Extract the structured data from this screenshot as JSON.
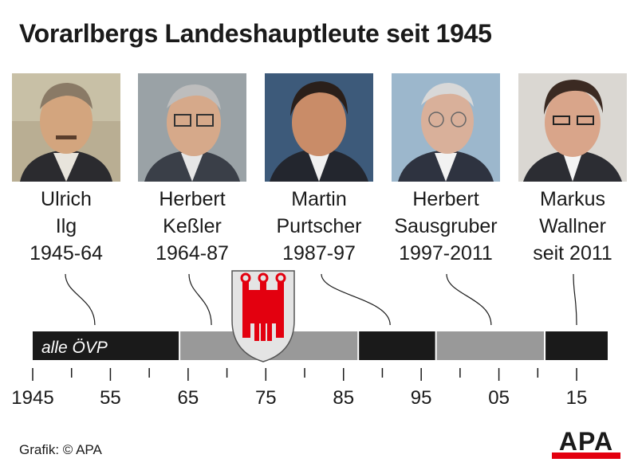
{
  "title": "Vorarlbergs Landeshauptleute seit 1945",
  "governors": [
    {
      "line1": "Ulrich",
      "line2": "Ilg",
      "line3": "1945-64",
      "start": 1945,
      "end": 1964
    },
    {
      "line1": "Herbert",
      "line2": "Keßler",
      "line3": "1964-87",
      "start": 1964,
      "end": 1987
    },
    {
      "line1": "Martin",
      "line2": "Purtscher",
      "line3": "1987-97",
      "start": 1987,
      "end": 1997
    },
    {
      "line1": "Herbert",
      "line2": "Sausgruber",
      "line3": "1997-2011",
      "start": 1997,
      "end": 2011
    },
    {
      "line1": "Markus",
      "line2": "Wallner",
      "line3": "seit 2011",
      "start": 2011,
      "end": 2019
    }
  ],
  "timeline_label": "alle ÖVP",
  "credit": "Grafik: © APA",
  "logo_text": "APA",
  "chart_data": {
    "type": "timeline",
    "x_range": [
      1945,
      2019
    ],
    "tick_labels": [
      "1945",
      "55",
      "65",
      "75",
      "85",
      "95",
      "05",
      "15"
    ],
    "tick_years": [
      1945,
      1955,
      1965,
      1975,
      1985,
      1995,
      2005,
      2015
    ],
    "minor_tick_years": [
      1950,
      1960,
      1970,
      1980,
      1990,
      2000,
      2010
    ],
    "segments": [
      {
        "start": 1945,
        "end": 1964,
        "color": "#1a1a1a"
      },
      {
        "start": 1964,
        "end": 1987,
        "color": "#999999"
      },
      {
        "start": 1987,
        "end": 1997,
        "color": "#1a1a1a"
      },
      {
        "start": 1997,
        "end": 2011,
        "color": "#999999"
      },
      {
        "start": 2011,
        "end": 2019,
        "color": "#1a1a1a"
      }
    ],
    "leader_years": [
      1953,
      1968,
      1991,
      2004,
      2015
    ],
    "colors": {
      "dark": "#1a1a1a",
      "grey": "#999999",
      "coat_red": "#e3000f"
    }
  }
}
